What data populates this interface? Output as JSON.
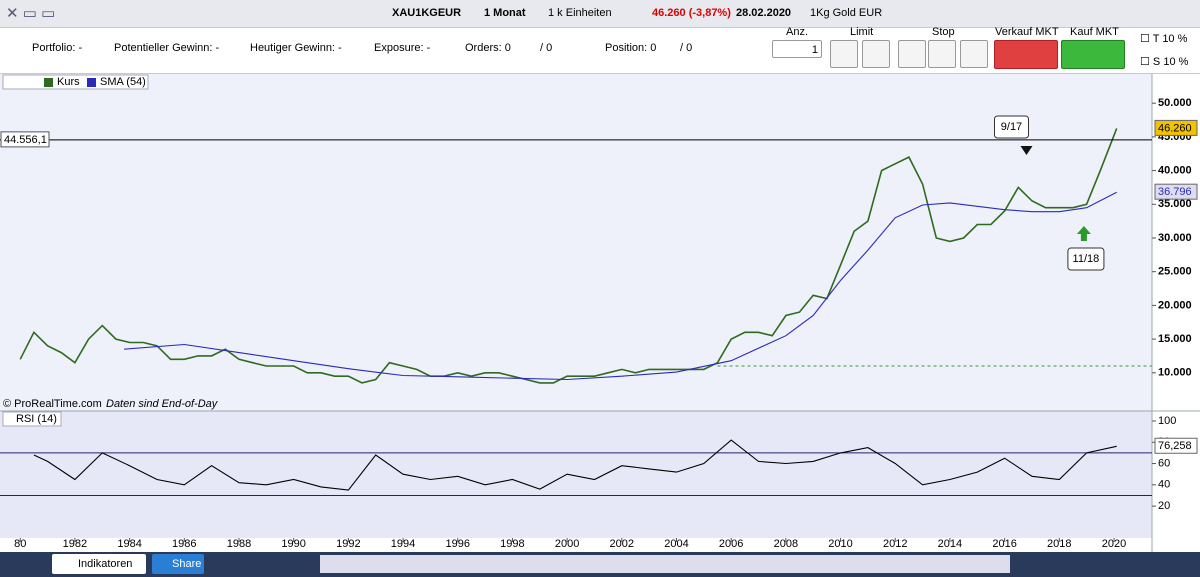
{
  "toolbar": {
    "symbol": "XAU1KGEUR",
    "period": "1 Monat",
    "units": "1 k Einheiten",
    "quote": "46.260 (-3,87%)",
    "date": "28.02.2020",
    "name": "1Kg Gold EUR"
  },
  "order_bar": {
    "portfolio": "Portfolio: -",
    "potential": "Potentieller Gewinn: -",
    "today": "Heutiger Gewinn: -",
    "exposure": "Exposure: -",
    "orders": "Orders: 0",
    "orders_total": "/ 0",
    "position": "Position: 0",
    "position_total": "/ 0",
    "qty_label": "Anz.",
    "qty": "1",
    "limit": "Limit",
    "stop": "Stop",
    "sell": "Verkauf MKT",
    "buy": "Kauf MKT",
    "t": "T",
    "t_pct": "10",
    "t_unit": "%",
    "s": "S",
    "s_pct": "10",
    "s_unit": "%"
  },
  "chart_data": [
    {
      "type": "line",
      "legend": [
        "Kurs",
        "SMA (54)"
      ],
      "source": "© ProRealTime.com",
      "note": "Daten sind End-of-Day",
      "xlim": [
        1979.26,
        2021.39
      ],
      "xticks": [
        {
          "value": 1980,
          "label": "80"
        },
        1982,
        1984,
        1986,
        1988,
        1990,
        1992,
        1994,
        1996,
        1998,
        2000,
        2002,
        2004,
        2006,
        2008,
        2010,
        2012,
        2014,
        2016,
        2018,
        2020
      ],
      "ylim": [
        4330,
        54330
      ],
      "yticks": [
        {
          "value": 10000,
          "label": "10.000"
        },
        {
          "value": 15000,
          "label": "15.000"
        },
        {
          "value": 20000,
          "label": "20.000"
        },
        {
          "value": 25000,
          "label": "25.000"
        },
        {
          "value": 30000,
          "label": "30.000"
        },
        {
          "value": 35000,
          "label": "35.000"
        },
        {
          "value": 40000,
          "label": "40.000"
        },
        {
          "value": 45000,
          "label": "45.000"
        },
        {
          "value": 50000,
          "label": "50.000"
        }
      ],
      "series": [
        {
          "name": "Kurs",
          "color": "#2e6b1f",
          "x": [
            1980,
            1980.5,
            1981,
            1981.5,
            1982,
            1982.5,
            1983,
            1983.5,
            1984,
            1984.5,
            1985,
            1985.5,
            1986,
            1986.5,
            1987,
            1987.5,
            1988,
            1988.5,
            1989,
            1989.5,
            1990,
            1990.5,
            1991,
            1991.5,
            1992,
            1992.5,
            1993,
            1993.5,
            1994,
            1994.5,
            1995,
            1995.5,
            1996,
            1996.5,
            1997,
            1997.5,
            1998,
            1998.5,
            1999,
            1999.5,
            2000,
            2000.5,
            2001,
            2001.5,
            2002,
            2002.5,
            2003,
            2003.5,
            2004,
            2004.5,
            2005,
            2005.5,
            2006,
            2006.5,
            2007,
            2007.5,
            2008,
            2008.5,
            2009,
            2009.5,
            2010,
            2010.5,
            2011,
            2011.5,
            2012,
            2012.5,
            2013,
            2013.5,
            2014,
            2014.5,
            2015,
            2015.5,
            2016,
            2016.5,
            2017,
            2017.5,
            2018,
            2018.5,
            2019,
            2019.5,
            2020.1
          ],
          "values": [
            12000,
            16000,
            14000,
            13000,
            11500,
            15000,
            17000,
            15000,
            14500,
            14500,
            14000,
            12000,
            12000,
            12500,
            12500,
            13500,
            12000,
            11500,
            11000,
            11000,
            11000,
            10000,
            10000,
            9500,
            9500,
            8500,
            9000,
            11500,
            11000,
            10500,
            9500,
            9500,
            10000,
            9500,
            10000,
            10000,
            9500,
            9000,
            8500,
            8500,
            9500,
            9500,
            9500,
            10000,
            10500,
            10000,
            10500,
            10500,
            10500,
            10500,
            10500,
            11500,
            15000,
            16000,
            16000,
            15500,
            18500,
            19000,
            21500,
            21000,
            26000,
            31000,
            32500,
            40000,
            41000,
            42000,
            38000,
            30000,
            29500,
            30000,
            32000,
            32000,
            34000,
            37500,
            35500,
            34500,
            34500,
            34500,
            35000,
            40000,
            46260
          ]
        },
        {
          "name": "SMA (54)",
          "color": "#2b2bb8",
          "x": [
            1983.8,
            1986,
            1988,
            1990,
            1992,
            1994,
            1996,
            1998,
            2000,
            2002,
            2004,
            2006,
            2008,
            2009,
            2010,
            2011,
            2012,
            2013,
            2014,
            2015,
            2016,
            2017,
            2018,
            2019,
            2020.1
          ],
          "values": [
            13500,
            14200,
            13000,
            11800,
            10600,
            9600,
            9400,
            9200,
            9000,
            9500,
            10100,
            11800,
            15500,
            18500,
            23700,
            28200,
            33000,
            34900,
            35200,
            34700,
            34200,
            33900,
            33900,
            34500,
            36796
          ]
        }
      ],
      "hline": {
        "value": 44556.1,
        "label": "44.556,1"
      },
      "support": {
        "value": 11000,
        "from": 2005.5
      },
      "price_label": {
        "value": 46260,
        "label": "46.260"
      },
      "sma_label": {
        "value": 36796,
        "label": "36.796"
      },
      "annotations": [
        {
          "x": 2016.8,
          "label": "9/17"
        },
        {
          "x": 2018.9,
          "label": "11/18"
        }
      ]
    },
    {
      "type": "line",
      "legend": [
        "RSI (14)"
      ],
      "xlim": [
        1979.26,
        2021.39
      ],
      "ylim": [
        -10,
        109.4
      ],
      "yticks": [
        20,
        40,
        60,
        80,
        100
      ],
      "levels": [
        70,
        30
      ],
      "series": [
        {
          "name": "RSI (14)",
          "color": "#000000",
          "x": [
            1980.5,
            1981,
            1982,
            1983,
            1984,
            1985,
            1986,
            1987,
            1988,
            1989,
            1990,
            1991,
            1992,
            1993,
            1994,
            1995,
            1996,
            1997,
            1998,
            1999,
            2000,
            2001,
            2002,
            2003,
            2004,
            2005,
            2006,
            2007,
            2008,
            2009,
            2010,
            2011,
            2012,
            2013,
            2014,
            2015,
            2016,
            2017,
            2018,
            2019,
            2020.1
          ],
          "values": [
            68,
            62,
            45,
            70,
            58,
            45,
            40,
            58,
            42,
            40,
            45,
            38,
            35,
            68,
            50,
            45,
            48,
            40,
            45,
            36,
            50,
            45,
            58,
            55,
            52,
            60,
            82,
            62,
            60,
            62,
            70,
            75,
            60,
            40,
            45,
            52,
            65,
            48,
            45,
            70,
            76.258
          ]
        }
      ],
      "last_label": {
        "value": 76.258,
        "label": "76,258"
      }
    }
  ],
  "bottom_bar": {
    "indicators": "Indikatoren",
    "share": "Share"
  }
}
